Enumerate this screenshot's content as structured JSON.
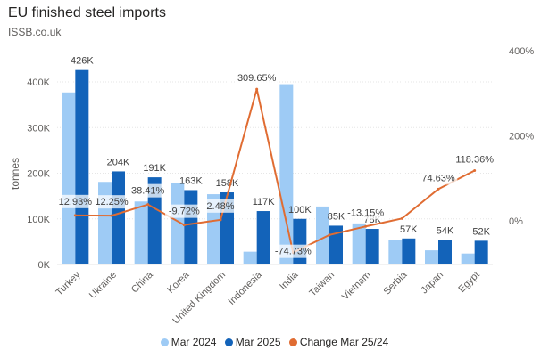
{
  "title": "EU finished steel imports",
  "subtitle": "ISSB.co.uk",
  "colors": {
    "mar2024": "#9ecbf5",
    "mar2025": "#1363b9",
    "change": "#e06c32",
    "axis_text": "#605e5c",
    "grid": "#e6e6e6"
  },
  "chart_data": {
    "type": "bar",
    "title": "EU finished steel imports",
    "ylabel": "tonnes",
    "ylim": [
      0,
      400000
    ],
    "y_ticks": [
      "0K",
      "100K",
      "200K",
      "300K",
      "400K"
    ],
    "y2_ticks": [
      "0%",
      "200%",
      "400%"
    ],
    "y2lim": [
      -100,
      400
    ],
    "categories": [
      "Turkey",
      "Ukraine",
      "China",
      "Korea",
      "United Kingdom",
      "Indonesia",
      "India",
      "Taiwan",
      "Vietnam",
      "Serbia",
      "Japan",
      "Egypt"
    ],
    "series": [
      {
        "name": "Mar 2024",
        "type": "bar",
        "values": [
          377000,
          181000,
          138000,
          179000,
          154000,
          28000,
          395000,
          127000,
          90000,
          54000,
          31000,
          24000
        ]
      },
      {
        "name": "Mar 2025",
        "type": "bar",
        "values": [
          426000,
          204000,
          191000,
          163000,
          158000,
          117000,
          100000,
          85000,
          78000,
          57000,
          54000,
          52000
        ],
        "data_labels": [
          "426K",
          "204K",
          "191K",
          "163K",
          "158K",
          "117K",
          "100K",
          "85K",
          "78K",
          "57K",
          "54K",
          "52K"
        ]
      },
      {
        "name": "Change Mar 25/24",
        "type": "line",
        "axis": "secondary",
        "values": [
          12.93,
          12.25,
          38.41,
          -9.72,
          2.48,
          309.65,
          -74.73,
          -33.1,
          -13.15,
          5.56,
          74.63,
          118.36
        ],
        "data_labels": [
          "12.93%",
          "12.25%",
          "38.41%",
          "-9.72%",
          "2.48%",
          "309.65%",
          "-74.73%",
          "",
          "-13.15%",
          "",
          "74.63%",
          "118.36%"
        ]
      }
    ],
    "legend": "bottom",
    "grid": true
  }
}
